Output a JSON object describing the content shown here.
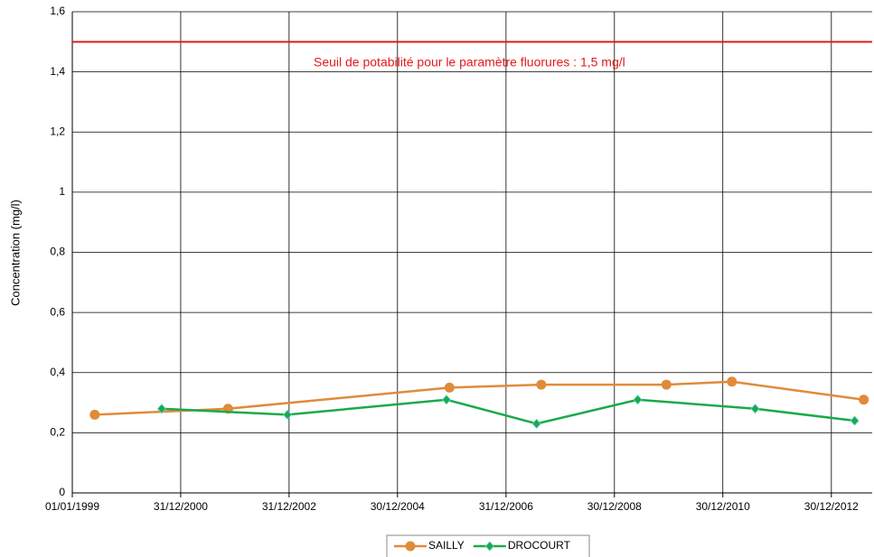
{
  "chart_data": {
    "type": "line",
    "y_label": "Concentration (mg/l)",
    "annotation": "Seuil de potabilité pour le paramètre  fluorures : 1,5 mg/l",
    "threshold": {
      "value": 1.5,
      "color": "#e31a1c"
    },
    "series": [
      {
        "name": "SAILLY",
        "color": "#e08b3a",
        "marker": "circle",
        "x": [
          "1999-06-01",
          "2001-11-15",
          "2005-12-15",
          "2007-08-25",
          "2009-12-15",
          "2011-03-01",
          "2013-08-05"
        ],
        "values": [
          0.26,
          0.28,
          0.35,
          0.36,
          0.36,
          0.37,
          0.31
        ]
      },
      {
        "name": "DROCOURT",
        "color": "#1aaa4a",
        "marker": "diamond",
        "x": [
          "2000-08-25",
          "2002-12-20",
          "2005-11-25",
          "2007-07-25",
          "2009-06-05",
          "2011-08-05",
          "2013-06-05"
        ],
        "values": [
          0.28,
          0.26,
          0.31,
          0.23,
          0.31,
          0.28,
          0.24
        ]
      }
    ],
    "xlim": [
      "1999-01-01",
      "2013-10-01"
    ],
    "xticks": [
      {
        "value": "1999-01-01",
        "label": "01/01/1999"
      },
      {
        "value": "2000-12-31",
        "label": "31/12/2000"
      },
      {
        "value": "2002-12-31",
        "label": "31/12/2002"
      },
      {
        "value": "2004-12-30",
        "label": "30/12/2004"
      },
      {
        "value": "2006-12-31",
        "label": "31/12/2006"
      },
      {
        "value": "2008-12-30",
        "label": "30/12/2008"
      },
      {
        "value": "2010-12-30",
        "label": "30/12/2010"
      },
      {
        "value": "2012-12-30",
        "label": "30/12/2012"
      }
    ],
    "ylim": [
      0,
      1.6
    ],
    "yticks": [
      0,
      {
        "value": 0.2,
        "label": "0,2"
      },
      {
        "value": 0.4,
        "label": "0,4"
      },
      {
        "value": 0.6,
        "label": "0,6"
      },
      {
        "value": 0.8,
        "label": "0,8"
      },
      1,
      {
        "value": 1.2,
        "label": "1,2"
      },
      {
        "value": 1.4,
        "label": "1,4"
      },
      {
        "value": 1.6,
        "label": "1,6"
      }
    ],
    "grid": true,
    "legend": "bottom"
  }
}
